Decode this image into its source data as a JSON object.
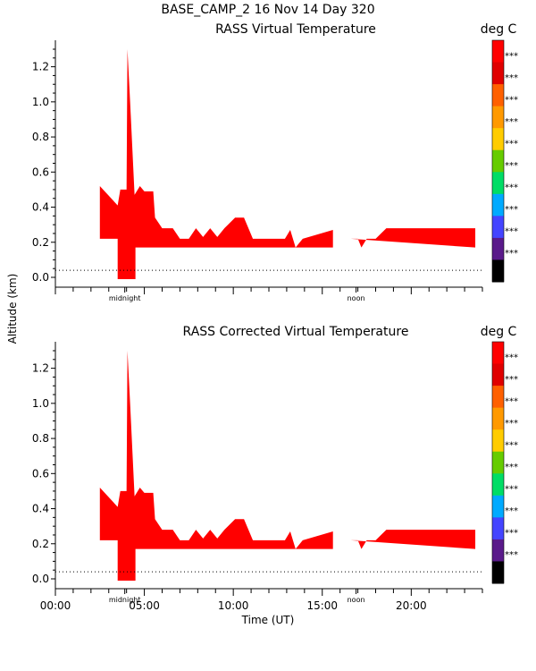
{
  "header": {
    "title": "BASE_CAMP_2  16 Nov 14 Day 320"
  },
  "axes": {
    "ylabel": "Altitude (km)",
    "xlabel": "Time (UT)",
    "y_ticks": [
      "0.0",
      "0.2",
      "0.4",
      "0.6",
      "0.8",
      "1.0",
      "1.2"
    ],
    "x_ticks": [
      "00:00",
      "05:00",
      "10:00",
      "15:00",
      "20:00"
    ],
    "markers": [
      "midnight",
      "noon"
    ]
  },
  "colorbar": {
    "unit": "deg C",
    "colors": [
      "#ff0000",
      "#e00000",
      "#ff6000",
      "#ff9900",
      "#ffcc00",
      "#66cc00",
      "#00dd66",
      "#00aaff",
      "#4444ff",
      "#5a1a8a",
      "#000000"
    ],
    "labels": [
      "***",
      "***",
      "***",
      "***",
      "***",
      "***",
      "***",
      "***",
      "***",
      "***"
    ]
  },
  "chart_data": [
    {
      "type": "area",
      "title": "RASS Virtual Temperature",
      "xlabel": "",
      "ylabel": "Altitude (km)",
      "xlim": [
        0,
        24
      ],
      "ylim": [
        0,
        1.3
      ],
      "fill_color": "#ff0000",
      "reference_line_km": 0.04,
      "upper_boundary": [
        [
          2.5,
          0.52
        ],
        [
          3.5,
          0.41
        ],
        [
          3.65,
          0.5
        ],
        [
          4.0,
          0.5
        ],
        [
          4.05,
          1.3
        ],
        [
          4.2,
          1.0
        ],
        [
          4.45,
          0.47
        ],
        [
          4.75,
          0.52
        ],
        [
          5.0,
          0.49
        ],
        [
          5.5,
          0.49
        ],
        [
          5.6,
          0.34
        ],
        [
          6.0,
          0.28
        ],
        [
          6.6,
          0.28
        ],
        [
          7.0,
          0.22
        ],
        [
          7.5,
          0.22
        ],
        [
          7.9,
          0.28
        ],
        [
          8.3,
          0.23
        ],
        [
          8.7,
          0.28
        ],
        [
          9.1,
          0.23
        ],
        [
          9.5,
          0.28
        ],
        [
          10.1,
          0.34
        ],
        [
          10.6,
          0.34
        ],
        [
          11.1,
          0.22
        ],
        [
          12.9,
          0.22
        ],
        [
          13.2,
          0.27
        ],
        [
          13.5,
          0.17
        ],
        [
          13.9,
          0.22
        ],
        [
          15.6,
          0.27
        ],
        [
          15.6,
          0.17
        ]
      ],
      "lower_boundary_segments": [
        [
          2.5,
          0.22
        ],
        [
          3.5,
          0.22
        ],
        [
          3.5,
          -0.01
        ],
        [
          4.5,
          -0.01
        ],
        [
          4.5,
          0.17
        ],
        [
          15.6,
          0.17
        ]
      ],
      "gap_hours": [
        15.6,
        16.6
      ],
      "second_segment_upper": [
        [
          16.6,
          0.22
        ],
        [
          17.0,
          0.22
        ],
        [
          17.2,
          0.17
        ],
        [
          17.5,
          0.22
        ],
        [
          18.0,
          0.22
        ],
        [
          18.6,
          0.28
        ],
        [
          23.6,
          0.28
        ],
        [
          23.6,
          0.17
        ]
      ],
      "second_segment_lower": [
        [
          16.6,
          0.17
        ],
        [
          16.6,
          0.22
        ]
      ]
    },
    {
      "type": "area",
      "title": "RASS Corrected Virtual Temperature",
      "xlabel": "Time (UT)",
      "ylabel": "Altitude (km)",
      "xlim": [
        0,
        24
      ],
      "ylim": [
        0,
        1.3
      ],
      "fill_color": "#ff0000",
      "reference_line_km": 0.04,
      "upper_boundary": [
        [
          2.5,
          0.52
        ],
        [
          3.5,
          0.41
        ],
        [
          3.65,
          0.5
        ],
        [
          4.0,
          0.5
        ],
        [
          4.05,
          1.3
        ],
        [
          4.2,
          1.0
        ],
        [
          4.45,
          0.47
        ],
        [
          4.75,
          0.52
        ],
        [
          5.0,
          0.49
        ],
        [
          5.5,
          0.49
        ],
        [
          5.6,
          0.34
        ],
        [
          6.0,
          0.28
        ],
        [
          6.6,
          0.28
        ],
        [
          7.0,
          0.22
        ],
        [
          7.5,
          0.22
        ],
        [
          7.9,
          0.28
        ],
        [
          8.3,
          0.23
        ],
        [
          8.7,
          0.28
        ],
        [
          9.1,
          0.23
        ],
        [
          9.5,
          0.28
        ],
        [
          10.1,
          0.34
        ],
        [
          10.6,
          0.34
        ],
        [
          11.1,
          0.22
        ],
        [
          12.9,
          0.22
        ],
        [
          13.2,
          0.27
        ],
        [
          13.5,
          0.17
        ],
        [
          13.9,
          0.22
        ],
        [
          15.6,
          0.27
        ],
        [
          15.6,
          0.17
        ]
      ],
      "lower_boundary_segments": [
        [
          2.5,
          0.22
        ],
        [
          3.5,
          0.22
        ],
        [
          3.5,
          -0.01
        ],
        [
          4.5,
          -0.01
        ],
        [
          4.5,
          0.17
        ],
        [
          15.6,
          0.17
        ]
      ],
      "gap_hours": [
        15.6,
        16.6
      ],
      "second_segment_upper": [
        [
          16.6,
          0.22
        ],
        [
          17.0,
          0.22
        ],
        [
          17.2,
          0.17
        ],
        [
          17.5,
          0.22
        ],
        [
          18.0,
          0.22
        ],
        [
          18.6,
          0.28
        ],
        [
          23.6,
          0.28
        ],
        [
          23.6,
          0.17
        ]
      ],
      "second_segment_lower": [
        [
          16.6,
          0.17
        ],
        [
          16.6,
          0.22
        ]
      ]
    }
  ]
}
